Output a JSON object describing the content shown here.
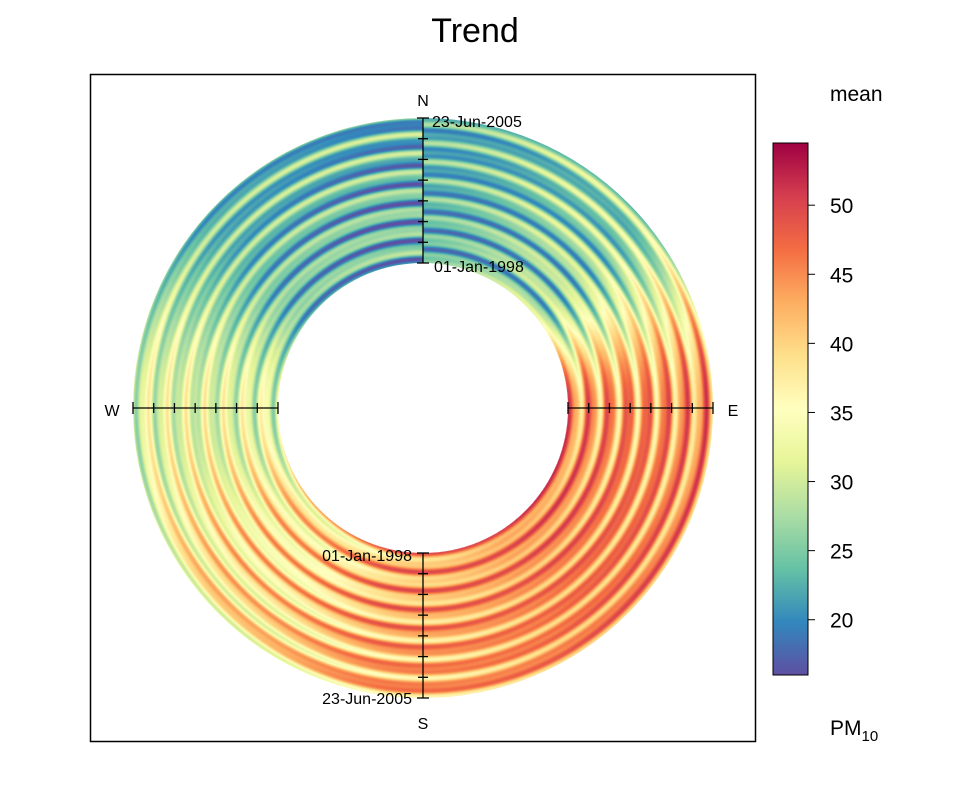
{
  "chart_data": {
    "type": "heatmap",
    "subtype": "polar-annulus trend",
    "title": "Trend",
    "pollutant_label": "PM",
    "pollutant_subscript": "10",
    "statistic_label": "mean",
    "compass": {
      "north": "N",
      "east": "E",
      "south": "S",
      "west": "W"
    },
    "radial_axis": {
      "inner_date": "01-Jan-1998",
      "outer_date": "23-Jun-2005",
      "ticks": 8
    },
    "colorbar": {
      "range": [
        16,
        54.5
      ],
      "ticks": [
        20,
        25,
        30,
        35,
        40,
        45,
        50
      ],
      "tick_labels": [
        "20",
        "25",
        "30",
        "35",
        "40",
        "45",
        "50"
      ],
      "palette": [
        "#5E4FA2",
        "#3288BD",
        "#66C2A5",
        "#ABDDA4",
        "#E6F598",
        "#FFFFBF",
        "#FEE08B",
        "#FDAE61",
        "#F46D43",
        "#D53E4F",
        "#9E0142"
      ]
    },
    "grid": false,
    "legend_position": "right",
    "field": {
      "description_of_values": "mean PM10 as function of wind direction (deg) and time along radius",
      "base_by_direction_deg": [
        [
          0,
          23
        ],
        [
          45,
          26
        ],
        [
          90,
          44
        ],
        [
          135,
          45
        ],
        [
          180,
          43
        ],
        [
          225,
          38
        ],
        [
          270,
          32
        ],
        [
          315,
          24
        ],
        [
          360,
          23
        ]
      ],
      "band_amplitude": 6,
      "band_cycles": 7.5
    }
  }
}
